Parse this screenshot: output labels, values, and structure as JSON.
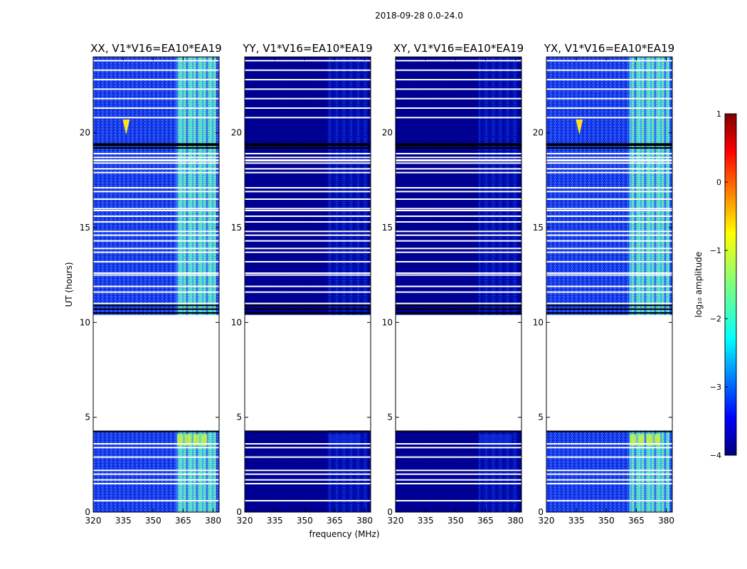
{
  "figure": {
    "suptitle": "2018-09-28 0.0-24.0"
  },
  "chart_data": {
    "type": "heatmap",
    "xlabel": "frequency (MHz)",
    "ylabel": "UT (hours)",
    "xlim": [
      320,
      383
    ],
    "ylim": [
      0,
      24
    ],
    "xticks": [
      "320",
      "335",
      "350",
      "365",
      "380"
    ],
    "yticks": [
      "0",
      "5",
      "10",
      "15",
      "20"
    ],
    "data_gap_hours": [
      10.4,
      4.3
    ],
    "panels": [
      {
        "title": "XX, V1*V16=EA10*EA19",
        "intensity": "high"
      },
      {
        "title": "YY, V1*V16=EA10*EA19",
        "intensity": "low"
      },
      {
        "title": "XY, V1*V16=EA10*EA19",
        "intensity": "low"
      },
      {
        "title": "YX, V1*V16=EA10*EA19",
        "intensity": "high"
      }
    ],
    "colorbar": {
      "label": "log₁₀ amplitude",
      "range": [
        -4,
        1
      ],
      "ticks": [
        "1",
        "0",
        "−1",
        "−2",
        "−3",
        "−4"
      ],
      "colormap": "jet"
    }
  }
}
